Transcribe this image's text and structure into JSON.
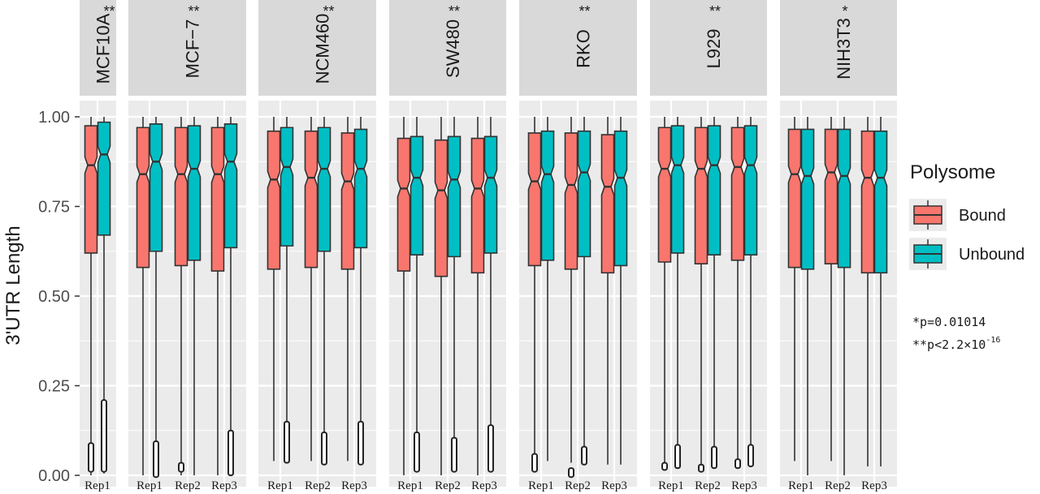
{
  "chart_data": {
    "type": "box",
    "ylabel": "3'UTR Length",
    "xlabel": "",
    "ylim": [
      0,
      1
    ],
    "yticks": [
      "0.00",
      "0.25",
      "0.50",
      "0.75",
      "1.00"
    ],
    "grid": true,
    "facet_layout": "horizontal strips, labels rotated",
    "legend": {
      "title": "Polysome",
      "position": "right",
      "entries": [
        {
          "name": "Bound",
          "color": "#F8766D"
        },
        {
          "name": "Unbound",
          "color": "#00BFC4"
        }
      ]
    },
    "annotation": {
      "p1_prefix": "*p=0.01014",
      "p2_prefix": "**p<2.2×10",
      "p2_exponent": "-16"
    },
    "panels": [
      {
        "label": "MCF10A",
        "sig": "**",
        "reps": [
          {
            "rep": "Rep1",
            "bound": {
              "min": 0.0,
              "q1": 0.62,
              "median": 0.865,
              "q3": 0.975,
              "max": 1.0,
              "outlier_low": 0.01,
              "outlier_high": 0.09
            },
            "unbound": {
              "min": 0.005,
              "q1": 0.67,
              "median": 0.895,
              "q3": 0.985,
              "max": 1.0,
              "outlier_low": 0.01,
              "outlier_high": 0.21
            }
          }
        ]
      },
      {
        "label": "MCF−7",
        "sig": "**",
        "reps": [
          {
            "rep": "Rep1",
            "bound": {
              "min": 0.0,
              "q1": 0.58,
              "median": 0.84,
              "q3": 0.97,
              "max": 1.0,
              "outlier_low": 0.0,
              "outlier_high": 0.0
            },
            "unbound": {
              "min": 0.0,
              "q1": 0.625,
              "median": 0.875,
              "q3": 0.98,
              "max": 1.0,
              "outlier_low": -0.005,
              "outlier_high": 0.095
            }
          },
          {
            "rep": "Rep2",
            "bound": {
              "min": 0.0,
              "q1": 0.585,
              "median": 0.84,
              "q3": 0.97,
              "max": 1.0,
              "outlier_low": 0.01,
              "outlier_high": 0.035
            },
            "unbound": {
              "min": 0.0,
              "q1": 0.6,
              "median": 0.855,
              "q3": 0.975,
              "max": 1.0,
              "outlier_low": 0.0,
              "outlier_high": 0.0
            }
          },
          {
            "rep": "Rep3",
            "bound": {
              "min": 0.0,
              "q1": 0.57,
              "median": 0.84,
              "q3": 0.97,
              "max": 1.0,
              "outlier_low": 0.0,
              "outlier_high": 0.0
            },
            "unbound": {
              "min": 0.0,
              "q1": 0.635,
              "median": 0.875,
              "q3": 0.98,
              "max": 1.0,
              "outlier_low": 0.0,
              "outlier_high": 0.125
            }
          }
        ]
      },
      {
        "label": "NCM460",
        "sig": "**",
        "reps": [
          {
            "rep": "Rep1",
            "bound": {
              "min": 0.04,
              "q1": 0.575,
              "median": 0.825,
              "q3": 0.96,
              "max": 1.0,
              "outlier_low": 0.0,
              "outlier_high": 0.0
            },
            "unbound": {
              "min": 0.035,
              "q1": 0.64,
              "median": 0.86,
              "q3": 0.97,
              "max": 1.0,
              "outlier_low": 0.035,
              "outlier_high": 0.15
            }
          },
          {
            "rep": "Rep2",
            "bound": {
              "min": 0.04,
              "q1": 0.58,
              "median": 0.83,
              "q3": 0.96,
              "max": 1.0,
              "outlier_low": 0.0,
              "outlier_high": 0.0
            },
            "unbound": {
              "min": 0.03,
              "q1": 0.625,
              "median": 0.855,
              "q3": 0.97,
              "max": 1.0,
              "outlier_low": 0.03,
              "outlier_high": 0.12
            }
          },
          {
            "rep": "Rep3",
            "bound": {
              "min": 0.04,
              "q1": 0.575,
              "median": 0.82,
              "q3": 0.955,
              "max": 1.0,
              "outlier_low": 0.0,
              "outlier_high": 0.0
            },
            "unbound": {
              "min": 0.03,
              "q1": 0.635,
              "median": 0.855,
              "q3": 0.965,
              "max": 1.0,
              "outlier_low": 0.03,
              "outlier_high": 0.15
            }
          }
        ]
      },
      {
        "label": "SW480",
        "sig": "**",
        "reps": [
          {
            "rep": "Rep1",
            "bound": {
              "min": 0.0,
              "q1": 0.57,
              "median": 0.8,
              "q3": 0.94,
              "max": 1.0,
              "outlier_low": 0.0,
              "outlier_high": 0.0
            },
            "unbound": {
              "min": 0.01,
              "q1": 0.615,
              "median": 0.83,
              "q3": 0.945,
              "max": 1.0,
              "outlier_low": 0.01,
              "outlier_high": 0.12
            }
          },
          {
            "rep": "Rep2",
            "bound": {
              "min": 0.0,
              "q1": 0.555,
              "median": 0.795,
              "q3": 0.935,
              "max": 1.0,
              "outlier_low": 0.0,
              "outlier_high": 0.0
            },
            "unbound": {
              "min": 0.01,
              "q1": 0.61,
              "median": 0.825,
              "q3": 0.945,
              "max": 1.0,
              "outlier_low": 0.01,
              "outlier_high": 0.105
            }
          },
          {
            "rep": "Rep3",
            "bound": {
              "min": 0.0,
              "q1": 0.565,
              "median": 0.8,
              "q3": 0.94,
              "max": 1.0,
              "outlier_low": 0.0,
              "outlier_high": 0.0
            },
            "unbound": {
              "min": 0.01,
              "q1": 0.62,
              "median": 0.83,
              "q3": 0.945,
              "max": 1.0,
              "outlier_low": 0.01,
              "outlier_high": 0.14
            }
          }
        ]
      },
      {
        "label": "RKO",
        "sig": "**",
        "reps": [
          {
            "rep": "Rep1",
            "bound": {
              "min": 0.04,
              "q1": 0.585,
              "median": 0.82,
              "q3": 0.955,
              "max": 1.0,
              "outlier_low": 0.01,
              "outlier_high": 0.06
            },
            "unbound": {
              "min": 0.04,
              "q1": 0.6,
              "median": 0.84,
              "q3": 0.96,
              "max": 1.0,
              "outlier_low": 0.0,
              "outlier_high": 0.0
            }
          },
          {
            "rep": "Rep2",
            "bound": {
              "min": 0.035,
              "q1": 0.575,
              "median": 0.81,
              "q3": 0.955,
              "max": 1.0,
              "outlier_low": -0.005,
              "outlier_high": 0.02
            },
            "unbound": {
              "min": 0.03,
              "q1": 0.61,
              "median": 0.845,
              "q3": 0.96,
              "max": 1.0,
              "outlier_low": 0.03,
              "outlier_high": 0.08
            }
          },
          {
            "rep": "Rep3",
            "bound": {
              "min": 0.03,
              "q1": 0.565,
              "median": 0.805,
              "q3": 0.95,
              "max": 1.0,
              "outlier_low": 0.0,
              "outlier_high": 0.0
            },
            "unbound": {
              "min": 0.03,
              "q1": 0.585,
              "median": 0.83,
              "q3": 0.96,
              "max": 1.0,
              "outlier_low": 0.0,
              "outlier_high": 0.0
            }
          }
        ]
      },
      {
        "label": "L929",
        "sig": "**",
        "reps": [
          {
            "rep": "Rep1",
            "bound": {
              "min": 0.035,
              "q1": 0.595,
              "median": 0.855,
              "q3": 0.97,
              "max": 1.0,
              "outlier_low": 0.015,
              "outlier_high": 0.035
            },
            "unbound": {
              "min": 0.02,
              "q1": 0.62,
              "median": 0.865,
              "q3": 0.975,
              "max": 1.0,
              "outlier_low": 0.02,
              "outlier_high": 0.085
            }
          },
          {
            "rep": "Rep2",
            "bound": {
              "min": 0.03,
              "q1": 0.59,
              "median": 0.855,
              "q3": 0.97,
              "max": 1.0,
              "outlier_low": 0.01,
              "outlier_high": 0.03
            },
            "unbound": {
              "min": 0.02,
              "q1": 0.615,
              "median": 0.865,
              "q3": 0.975,
              "max": 1.0,
              "outlier_low": 0.02,
              "outlier_high": 0.08
            }
          },
          {
            "rep": "Rep3",
            "bound": {
              "min": 0.045,
              "q1": 0.6,
              "median": 0.86,
              "q3": 0.97,
              "max": 1.0,
              "outlier_low": 0.02,
              "outlier_high": 0.045
            },
            "unbound": {
              "min": 0.025,
              "q1": 0.615,
              "median": 0.865,
              "q3": 0.975,
              "max": 1.0,
              "outlier_low": 0.025,
              "outlier_high": 0.085
            }
          }
        ]
      },
      {
        "label": "NIH3T3",
        "sig": "*",
        "reps": [
          {
            "rep": "Rep1",
            "bound": {
              "min": 0.04,
              "q1": 0.58,
              "median": 0.84,
              "q3": 0.965,
              "max": 1.0,
              "outlier_low": 0.0,
              "outlier_high": 0.0
            },
            "unbound": {
              "min": 0.0,
              "q1": 0.575,
              "median": 0.835,
              "q3": 0.965,
              "max": 1.0,
              "outlier_low": 0.0,
              "outlier_high": 0.0
            }
          },
          {
            "rep": "Rep2",
            "bound": {
              "min": 0.04,
              "q1": 0.59,
              "median": 0.845,
              "q3": 0.965,
              "max": 1.0,
              "outlier_low": 0.0,
              "outlier_high": 0.0
            },
            "unbound": {
              "min": 0.0,
              "q1": 0.58,
              "median": 0.835,
              "q3": 0.965,
              "max": 1.0,
              "outlier_low": 0.0,
              "outlier_high": 0.0
            }
          },
          {
            "rep": "Rep3",
            "bound": {
              "min": 0.025,
              "q1": 0.565,
              "median": 0.83,
              "q3": 0.96,
              "max": 1.0,
              "outlier_low": 0.0,
              "outlier_high": 0.0
            },
            "unbound": {
              "min": 0.025,
              "q1": 0.565,
              "median": 0.83,
              "q3": 0.96,
              "max": 1.0,
              "outlier_low": 0.0,
              "outlier_high": 0.0
            }
          }
        ]
      }
    ]
  }
}
